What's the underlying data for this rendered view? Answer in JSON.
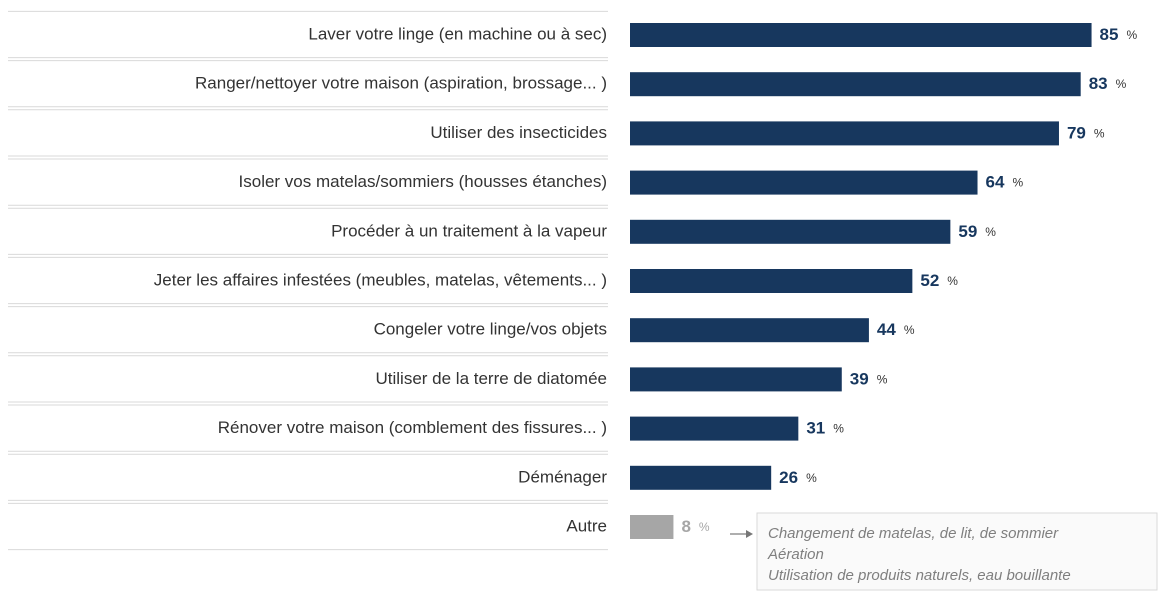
{
  "chart_data": {
    "type": "barh",
    "categories": [
      "Laver votre linge (en machine ou à sec)",
      "Ranger/nettoyer votre maison (aspiration, brossage... )",
      "Utiliser des insecticides",
      "Isoler vos matelas/sommiers (housses étanches)",
      "Procéder à un traitement à la vapeur",
      "Jeter les affaires infestées (meubles, matelas, vêtements... )",
      "Congeler votre linge/vos objets",
      "Utiliser de la terre de diatomée",
      "Rénover votre maison (comblement des fissures... )",
      "Déménager",
      "Autre"
    ],
    "values": [
      85,
      83,
      79,
      64,
      59,
      52,
      44,
      39,
      31,
      26,
      8
    ],
    "value_suffix": "%",
    "colors": [
      "#17375e",
      "#17375e",
      "#17375e",
      "#17375e",
      "#17375e",
      "#17375e",
      "#17375e",
      "#17375e",
      "#17375e",
      "#17375e",
      "#a6a6a6"
    ],
    "xlim": [
      0,
      100
    ],
    "annotation": [
      "Changement de matelas, de lit, de sommier",
      "Aération",
      "Utilisation de produits naturels, eau bouillante"
    ]
  }
}
